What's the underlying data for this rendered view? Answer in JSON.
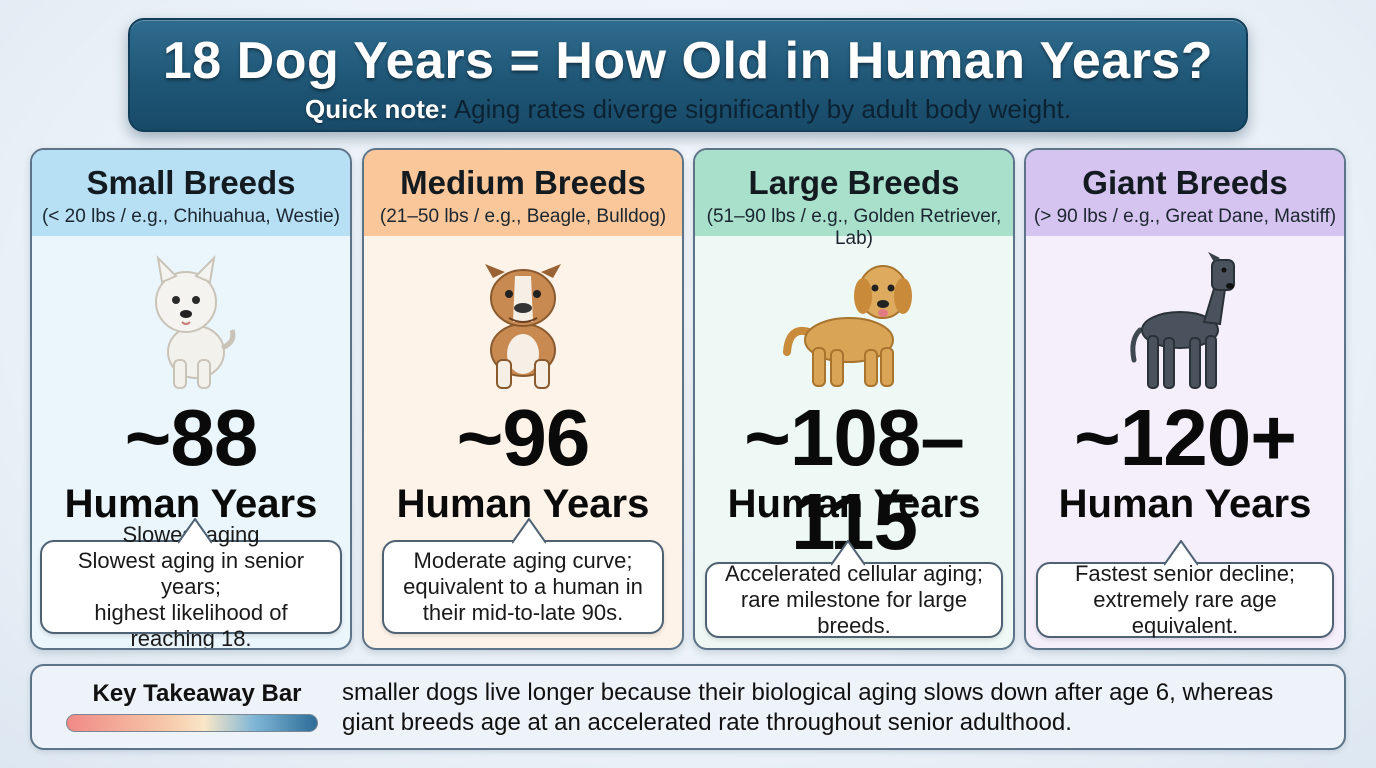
{
  "banner": {
    "title": "18 Dog Years = How Old in Human Years?",
    "note_label": "Quick note:",
    "note_text": " Aging rates diverge significantly by adult body weight."
  },
  "cards": [
    {
      "title": "Small Breeds",
      "subtitle": "(< 20 lbs / e.g., Chihuahua, Westie)",
      "age": "~88",
      "unit": "Human Years",
      "note": "Slowest aging\nSlowest aging in senior years; highest likelihood of reaching 18.",
      "note_line1": "Slowest aging",
      "note_line2": "Slowest aging in senior years;",
      "note_line3": "highest likelihood of reaching 18.",
      "icon": "westie-dog-icon",
      "color": "#b7e0f5"
    },
    {
      "title": "Medium Breeds",
      "subtitle": "(21–50 lbs / e.g., Beagle, Bulldog)",
      "age": "~96",
      "unit": "Human Years",
      "note_line1": "Moderate aging curve;",
      "note_line2": "equivalent to a human in",
      "note_line3": "their mid-to-late 90s.",
      "icon": "bulldog-icon",
      "color": "#f9c79a"
    },
    {
      "title": "Large Breeds",
      "subtitle": "(51–90 lbs / e.g., Golden Retriever, Lab)",
      "age": "~108–115",
      "unit": "Human Years",
      "note_line1": "Accelerated cellular aging;",
      "note_line2": "rare milestone for large breeds.",
      "icon": "golden-retriever-icon",
      "color": "#a8e0cb"
    },
    {
      "title": "Giant Breeds",
      "subtitle": "(> 90 lbs / e.g., Great Dane, Mastiff)",
      "age": "~120+",
      "unit": "Human Years",
      "note_line1": "Fastest senior decline;",
      "note_line2": "extremely rare age equivalent.",
      "icon": "great-dane-icon",
      "color": "#d6c4f0"
    }
  ],
  "takeaway": {
    "label": "Key Takeaway Bar",
    "line1": "smaller dogs live longer because their biological aging slows down after age 6, whereas",
    "line2": "giant breeds age at an accelerated rate throughout senior adulthood.",
    "gradient_colors": [
      "#f08a86",
      "#f9e6c8",
      "#2d6d97"
    ]
  }
}
